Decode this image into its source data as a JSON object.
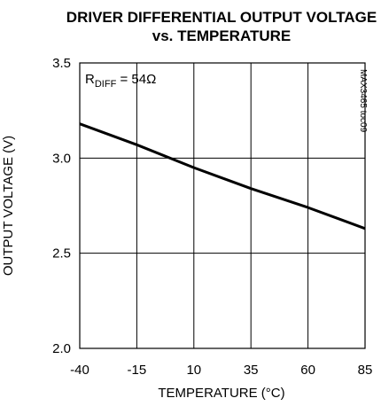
{
  "chart_data": {
    "type": "line",
    "title_line1": "DRIVER DIFFERENTIAL OUTPUT VOLTAGE",
    "title_line2": "vs. TEMPERATURE",
    "xlabel": "TEMPERATURE (°C)",
    "ylabel": "OUTPUT VOLTAGE (V)",
    "xlim": [
      -40,
      85
    ],
    "ylim": [
      2.0,
      3.5
    ],
    "xticks": [
      -40,
      -15,
      10,
      35,
      60,
      85
    ],
    "yticks": [
      2.0,
      2.5,
      3.0,
      3.5
    ],
    "ytick_labels": [
      "2.0",
      "2.5",
      "3.0",
      "3.5"
    ],
    "grid": true,
    "annotation": {
      "prefix": "R",
      "subscript": "DIFF",
      "suffix": " = 54Ω"
    },
    "code_label": "MAX3465 toc09",
    "series": [
      {
        "x": [
          -40,
          -15,
          10,
          35,
          60,
          85
        ],
        "y": [
          3.18,
          3.07,
          2.95,
          2.84,
          2.74,
          2.63
        ]
      }
    ]
  }
}
